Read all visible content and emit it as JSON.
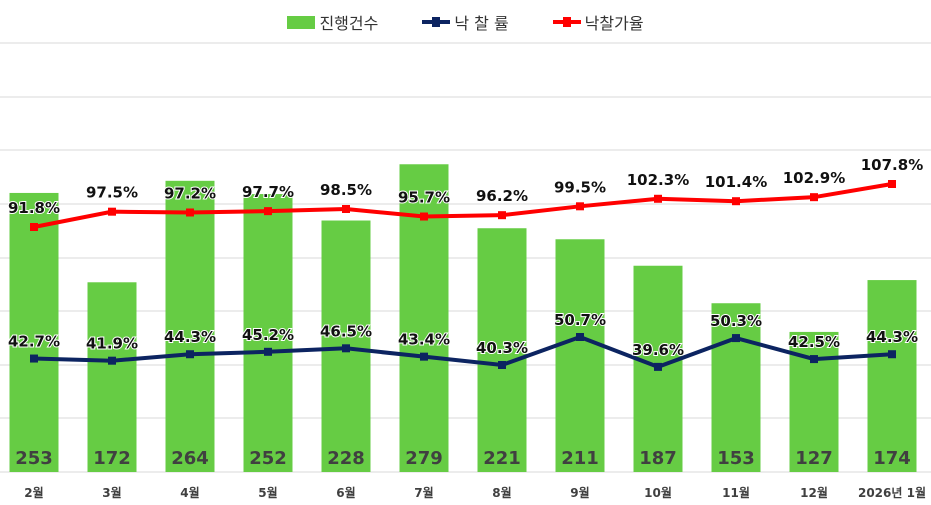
{
  "legend": {
    "bars": "진행건수",
    "rate": "낙 찰 률",
    "price_rate": "낙찰가율"
  },
  "colors": {
    "bars": "#66cc44",
    "rate": "#0c2461",
    "price_rate": "#ff0000",
    "grid": "#d9d9d9"
  },
  "chart_data": {
    "type": "bar+line",
    "title": "",
    "categories": [
      "2월",
      "3월",
      "4월",
      "5월",
      "6월",
      "7월",
      "8월",
      "9월",
      "10월",
      "11월",
      "12월",
      "2026년 1월"
    ],
    "series": [
      {
        "name": "진행건수",
        "type": "bar",
        "values": [
          253,
          172,
          264,
          252,
          228,
          279,
          221,
          211,
          187,
          153,
          127,
          174
        ]
      },
      {
        "name": "낙 찰 률",
        "type": "line",
        "unit": "%",
        "values": [
          42.7,
          41.9,
          44.3,
          45.2,
          46.5,
          43.4,
          40.3,
          50.7,
          39.6,
          50.3,
          42.5,
          44.3
        ]
      },
      {
        "name": "낙찰가율",
        "type": "line",
        "unit": "%",
        "values": [
          91.8,
          97.5,
          97.2,
          97.7,
          98.5,
          95.7,
          96.2,
          99.5,
          102.3,
          101.4,
          102.9,
          107.8
        ]
      }
    ],
    "legend_position": "top",
    "grid": true
  }
}
